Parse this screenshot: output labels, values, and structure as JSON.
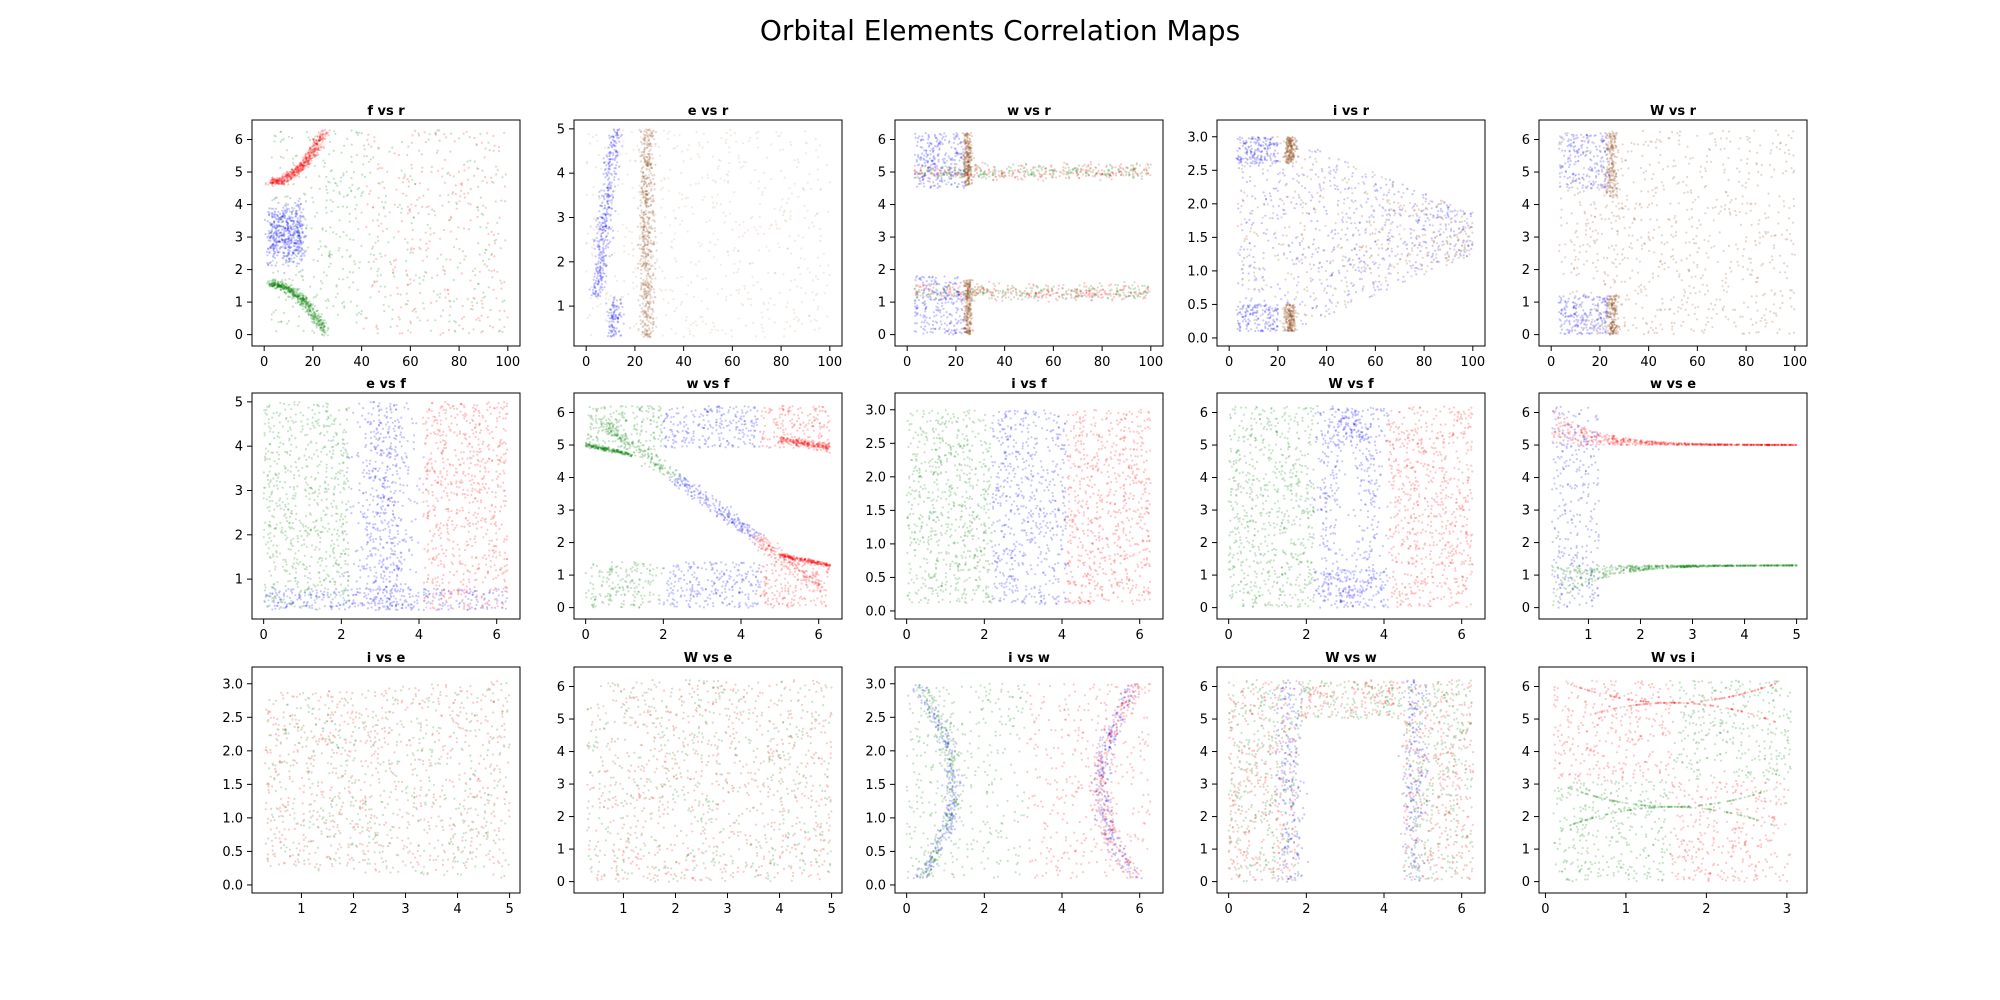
{
  "figure": {
    "title": "Orbital Elements Correlation Maps"
  },
  "chart_data": [
    {
      "type": "scatter",
      "title": "f vs r",
      "pattern": "f_r",
      "xlim": [
        -5,
        105
      ],
      "ylim": [
        -0.35,
        6.6
      ],
      "xticks": [
        0,
        20,
        40,
        60,
        80,
        100
      ],
      "yticks": [
        0,
        1,
        2,
        3,
        4,
        5,
        6
      ],
      "series": [
        {
          "color": "#ff0000"
        },
        {
          "color": "#0000ff"
        },
        {
          "color": "#008000"
        }
      ]
    },
    {
      "type": "scatter",
      "title": "e vs r",
      "pattern": "e_r",
      "xlim": [
        -5,
        105
      ],
      "ylim": [
        0.1,
        5.2
      ],
      "xticks": [
        0,
        20,
        40,
        60,
        80,
        100
      ],
      "yticks": [
        1,
        2,
        3,
        4,
        5
      ],
      "series": [
        {
          "color": "#0000ff"
        },
        {
          "color": "#8b4513"
        },
        {
          "color": "#c8a080"
        }
      ]
    },
    {
      "type": "scatter",
      "title": "w vs r",
      "pattern": "w_r",
      "xlim": [
        -5,
        105
      ],
      "ylim": [
        -0.35,
        6.6
      ],
      "xticks": [
        0,
        20,
        40,
        60,
        80,
        100
      ],
      "yticks": [
        0,
        1,
        2,
        3,
        4,
        5,
        6
      ],
      "series": [
        {
          "color": "#ff0000"
        },
        {
          "color": "#0000ff"
        },
        {
          "color": "#008000"
        },
        {
          "color": "#8b4513"
        }
      ]
    },
    {
      "type": "scatter",
      "title": "i vs r",
      "pattern": "i_r",
      "xlim": [
        -5,
        105
      ],
      "ylim": [
        -0.12,
        3.25
      ],
      "xticks": [
        0,
        20,
        40,
        60,
        80,
        100
      ],
      "yticks": [
        0.0,
        0.5,
        1.0,
        1.5,
        2.0,
        2.5,
        3.0
      ],
      "ytick_labels": [
        "0.0",
        "0.5",
        "1.0",
        "1.5",
        "2.0",
        "2.5",
        "3.0"
      ],
      "series": [
        {
          "color": "#0000ff"
        },
        {
          "color": "#8b4513"
        }
      ]
    },
    {
      "type": "scatter",
      "title": "W vs r",
      "pattern": "W_r",
      "xlim": [
        -5,
        105
      ],
      "ylim": [
        -0.35,
        6.6
      ],
      "xticks": [
        0,
        20,
        40,
        60,
        80,
        100
      ],
      "yticks": [
        0,
        1,
        2,
        3,
        4,
        5,
        6
      ],
      "series": [
        {
          "color": "#0000ff"
        },
        {
          "color": "#8b4513"
        }
      ]
    },
    {
      "type": "scatter",
      "title": "e vs f",
      "pattern": "e_f",
      "xlim": [
        -0.3,
        6.6
      ],
      "ylim": [
        0.1,
        5.2
      ],
      "xticks": [
        0,
        2,
        4,
        6
      ],
      "yticks": [
        1,
        2,
        3,
        4,
        5
      ],
      "series": [
        {
          "color": "#008000"
        },
        {
          "color": "#0000ff"
        },
        {
          "color": "#ff0000"
        }
      ]
    },
    {
      "type": "scatter",
      "title": "w vs f",
      "pattern": "w_f",
      "xlim": [
        -0.3,
        6.6
      ],
      "ylim": [
        -0.35,
        6.6
      ],
      "xticks": [
        0,
        2,
        4,
        6
      ],
      "yticks": [
        0,
        1,
        2,
        3,
        4,
        5,
        6
      ],
      "series": [
        {
          "color": "#008000"
        },
        {
          "color": "#0000ff"
        },
        {
          "color": "#ff0000"
        }
      ]
    },
    {
      "type": "scatter",
      "title": "i vs f",
      "pattern": "i_f",
      "xlim": [
        -0.3,
        6.6
      ],
      "ylim": [
        -0.12,
        3.25
      ],
      "xticks": [
        0,
        2,
        4,
        6
      ],
      "yticks": [
        0.0,
        0.5,
        1.0,
        1.5,
        2.0,
        2.5,
        3.0
      ],
      "ytick_labels": [
        "0.0",
        "0.5",
        "1.0",
        "1.5",
        "2.0",
        "2.5",
        "3.0"
      ],
      "series": [
        {
          "color": "#008000"
        },
        {
          "color": "#0000ff"
        },
        {
          "color": "#ff0000"
        }
      ]
    },
    {
      "type": "scatter",
      "title": "W vs f",
      "pattern": "W_f",
      "xlim": [
        -0.3,
        6.6
      ],
      "ylim": [
        -0.35,
        6.6
      ],
      "xticks": [
        0,
        2,
        4,
        6
      ],
      "yticks": [
        0,
        1,
        2,
        3,
        4,
        5,
        6
      ],
      "series": [
        {
          "color": "#008000"
        },
        {
          "color": "#0000ff"
        },
        {
          "color": "#ff0000"
        }
      ]
    },
    {
      "type": "scatter",
      "title": "w vs e",
      "pattern": "w_e",
      "xlim": [
        0.05,
        5.2
      ],
      "ylim": [
        -0.35,
        6.6
      ],
      "xticks": [
        1,
        2,
        3,
        4,
        5
      ],
      "yticks": [
        0,
        1,
        2,
        3,
        4,
        5,
        6
      ],
      "series": [
        {
          "color": "#ff0000"
        },
        {
          "color": "#008000"
        },
        {
          "color": "#0000ff"
        }
      ]
    },
    {
      "type": "scatter",
      "title": "i vs e",
      "pattern": "i_e",
      "xlim": [
        0.05,
        5.2
      ],
      "ylim": [
        -0.12,
        3.25
      ],
      "xticks": [
        1,
        2,
        3,
        4,
        5
      ],
      "yticks": [
        0.0,
        0.5,
        1.0,
        1.5,
        2.0,
        2.5,
        3.0
      ],
      "ytick_labels": [
        "0.0",
        "0.5",
        "1.0",
        "1.5",
        "2.0",
        "2.5",
        "3.0"
      ],
      "series": [
        {
          "color": "#8b4513"
        },
        {
          "color": "#ff0000"
        },
        {
          "color": "#008000"
        }
      ]
    },
    {
      "type": "scatter",
      "title": "W vs e",
      "pattern": "W_e",
      "xlim": [
        0.05,
        5.2
      ],
      "ylim": [
        -0.35,
        6.6
      ],
      "xticks": [
        1,
        2,
        3,
        4,
        5
      ],
      "yticks": [
        0,
        1,
        2,
        3,
        4,
        5,
        6
      ],
      "series": [
        {
          "color": "#8b4513"
        },
        {
          "color": "#ff0000"
        },
        {
          "color": "#008000"
        }
      ]
    },
    {
      "type": "scatter",
      "title": "i vs w",
      "pattern": "i_w",
      "xlim": [
        -0.3,
        6.6
      ],
      "ylim": [
        -0.12,
        3.25
      ],
      "xticks": [
        0,
        2,
        4,
        6
      ],
      "yticks": [
        0.0,
        0.5,
        1.0,
        1.5,
        2.0,
        2.5,
        3.0
      ],
      "ytick_labels": [
        "0.0",
        "0.5",
        "1.0",
        "1.5",
        "2.0",
        "2.5",
        "3.0"
      ],
      "series": [
        {
          "color": "#008000"
        },
        {
          "color": "#0000ff"
        },
        {
          "color": "#ff0000"
        }
      ]
    },
    {
      "type": "scatter",
      "title": "W vs w",
      "pattern": "W_w",
      "xlim": [
        -0.3,
        6.6
      ],
      "ylim": [
        -0.35,
        6.6
      ],
      "xticks": [
        0,
        2,
        4,
        6
      ],
      "yticks": [
        0,
        1,
        2,
        3,
        4,
        5,
        6
      ],
      "series": [
        {
          "color": "#ff0000"
        },
        {
          "color": "#008000"
        },
        {
          "color": "#0000ff"
        }
      ]
    },
    {
      "type": "scatter",
      "title": "W vs i",
      "pattern": "W_i",
      "xlim": [
        -0.08,
        3.25
      ],
      "ylim": [
        -0.35,
        6.6
      ],
      "xticks": [
        0,
        1,
        2,
        3
      ],
      "yticks": [
        0,
        1,
        2,
        3,
        4,
        5,
        6
      ],
      "series": [
        {
          "color": "#ff0000"
        },
        {
          "color": "#008000"
        }
      ]
    }
  ]
}
